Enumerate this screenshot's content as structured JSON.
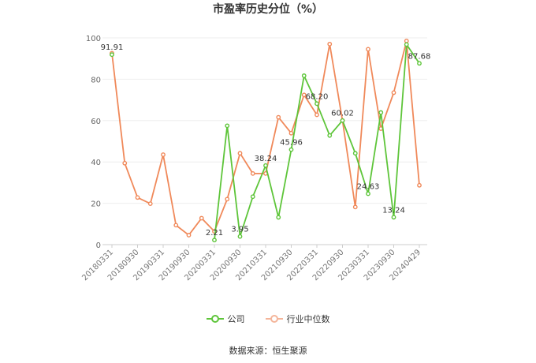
{
  "chart_data": {
    "type": "line",
    "title": "市盈率历史分位（%）",
    "source": "数据来源：恒生聚源",
    "ylim": [
      0,
      100
    ],
    "yticks": [
      0,
      20,
      40,
      60,
      80,
      100
    ],
    "grid": true,
    "legend_position": "bottom",
    "x_ticks": [
      "20180331",
      "20180930",
      "20190331",
      "20190930",
      "20200331",
      "20200930",
      "20210331",
      "20210930",
      "20220331",
      "20220930",
      "20230331",
      "20230930",
      "20240429"
    ],
    "x": [
      "20180331",
      "20180630",
      "20180930",
      "20181231",
      "20190331",
      "20190630",
      "20190930",
      "20191231",
      "20200331",
      "20200630",
      "20200930",
      "20201231",
      "20210331",
      "20210630",
      "20210930",
      "20211231",
      "20220331",
      "20220630",
      "20220930",
      "20221231",
      "20230331",
      "20230630",
      "20230930",
      "20231231",
      "20240429"
    ],
    "series": [
      {
        "name": "公司",
        "color": "#5ec53a",
        "values": [
          91.91,
          null,
          null,
          null,
          null,
          null,
          null,
          null,
          2.21,
          57.5,
          3.95,
          23.2,
          38.24,
          13.2,
          45.96,
          81.7,
          68.2,
          52.8,
          60.02,
          44.2,
          24.63,
          63.9,
          13.24,
          96.8,
          87.68
        ]
      },
      {
        "name": "行业中位数",
        "color": "#f0895a",
        "values": [
          92.6,
          39.4,
          22.8,
          19.8,
          43.5,
          9.4,
          4.6,
          12.8,
          6.4,
          22.0,
          44.2,
          34.4,
          34.4,
          61.6,
          53.9,
          72.4,
          62.8,
          97.0,
          60.0,
          18.2,
          94.5,
          56.1,
          73.5,
          98.5,
          28.7
        ]
      }
    ],
    "data_labels": [
      {
        "index": 0,
        "text": "91.91"
      },
      {
        "index": 8,
        "text": "2.21"
      },
      {
        "index": 10,
        "text": "3.95"
      },
      {
        "index": 12,
        "text": "38.24"
      },
      {
        "index": 14,
        "text": "45.96"
      },
      {
        "index": 16,
        "text": "68.20"
      },
      {
        "index": 18,
        "text": "60.02"
      },
      {
        "index": 20,
        "text": "24.63"
      },
      {
        "index": 22,
        "text": "13.24"
      },
      {
        "index": 24,
        "text": "87.68"
      }
    ]
  }
}
